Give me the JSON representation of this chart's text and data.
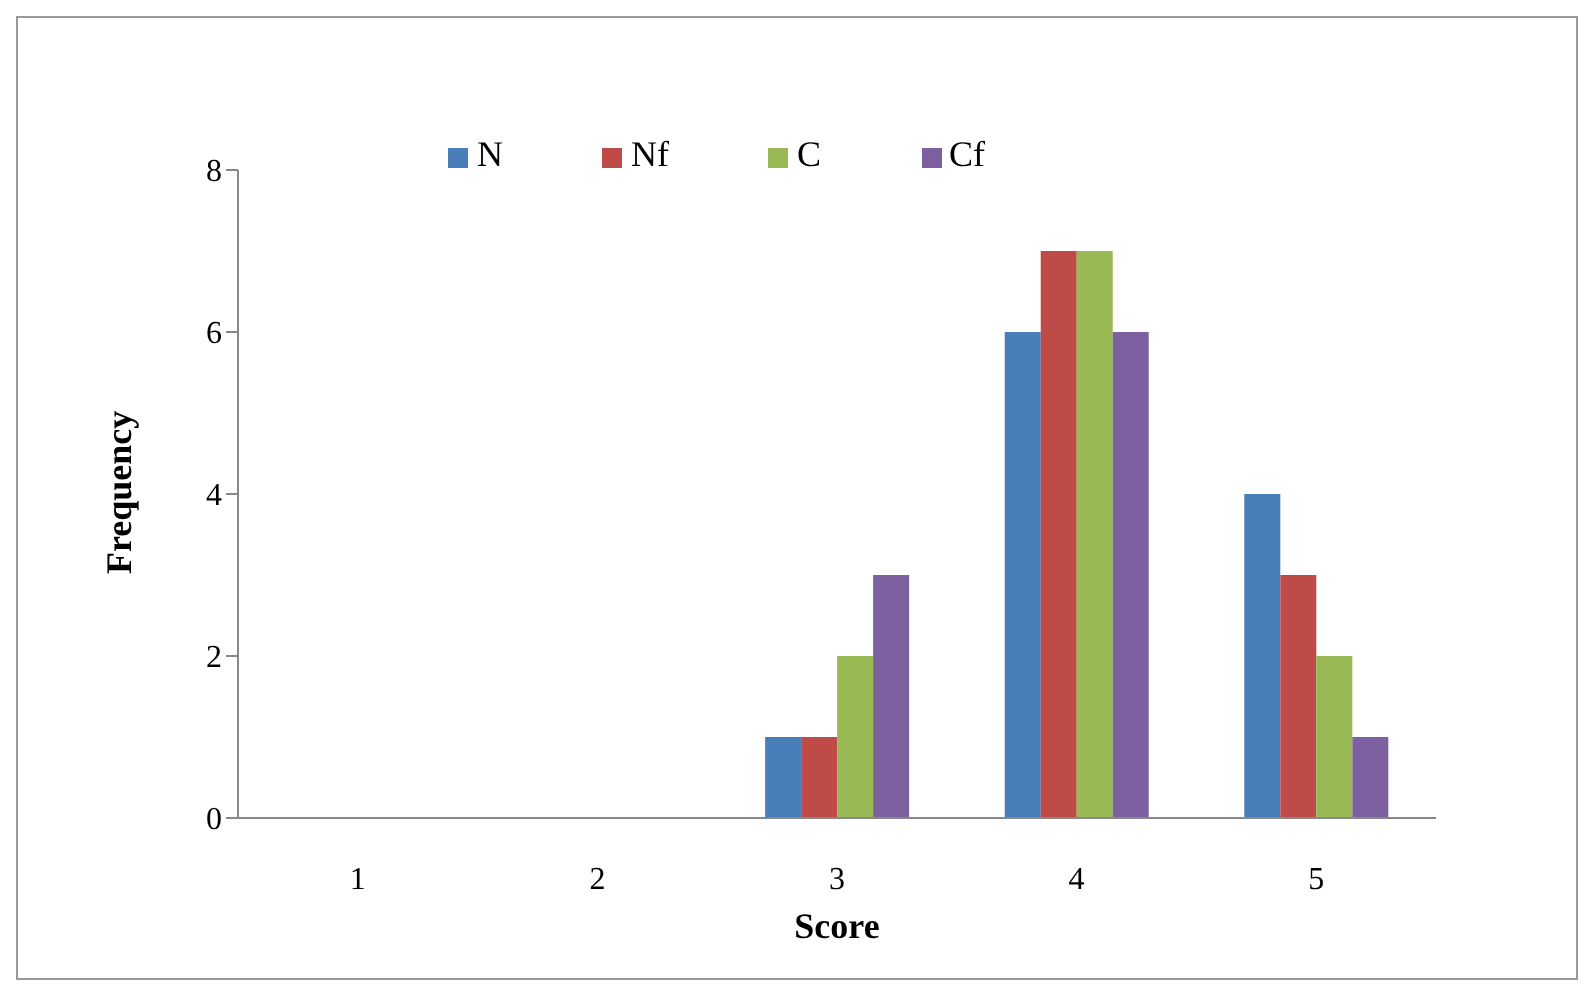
{
  "chart_data": {
    "type": "bar",
    "xlabel": "Score",
    "ylabel": "Frequency",
    "categories": [
      "1",
      "2",
      "3",
      "4",
      "5"
    ],
    "series": [
      {
        "name": "N",
        "color": "#4a7ebb",
        "values": [
          0,
          0,
          1,
          6,
          4
        ]
      },
      {
        "name": "Nf",
        "color": "#be4b48",
        "values": [
          0,
          0,
          1,
          7,
          3
        ]
      },
      {
        "name": "C",
        "color": "#98b954",
        "values": [
          0,
          0,
          2,
          7,
          2
        ]
      },
      {
        "name": "Cf",
        "color": "#7d60a0",
        "values": [
          0,
          0,
          3,
          6,
          1
        ]
      }
    ],
    "ylim": [
      0,
      8
    ],
    "yticks": [
      0,
      2,
      4,
      6,
      8
    ],
    "grid": false,
    "legend": "top"
  }
}
